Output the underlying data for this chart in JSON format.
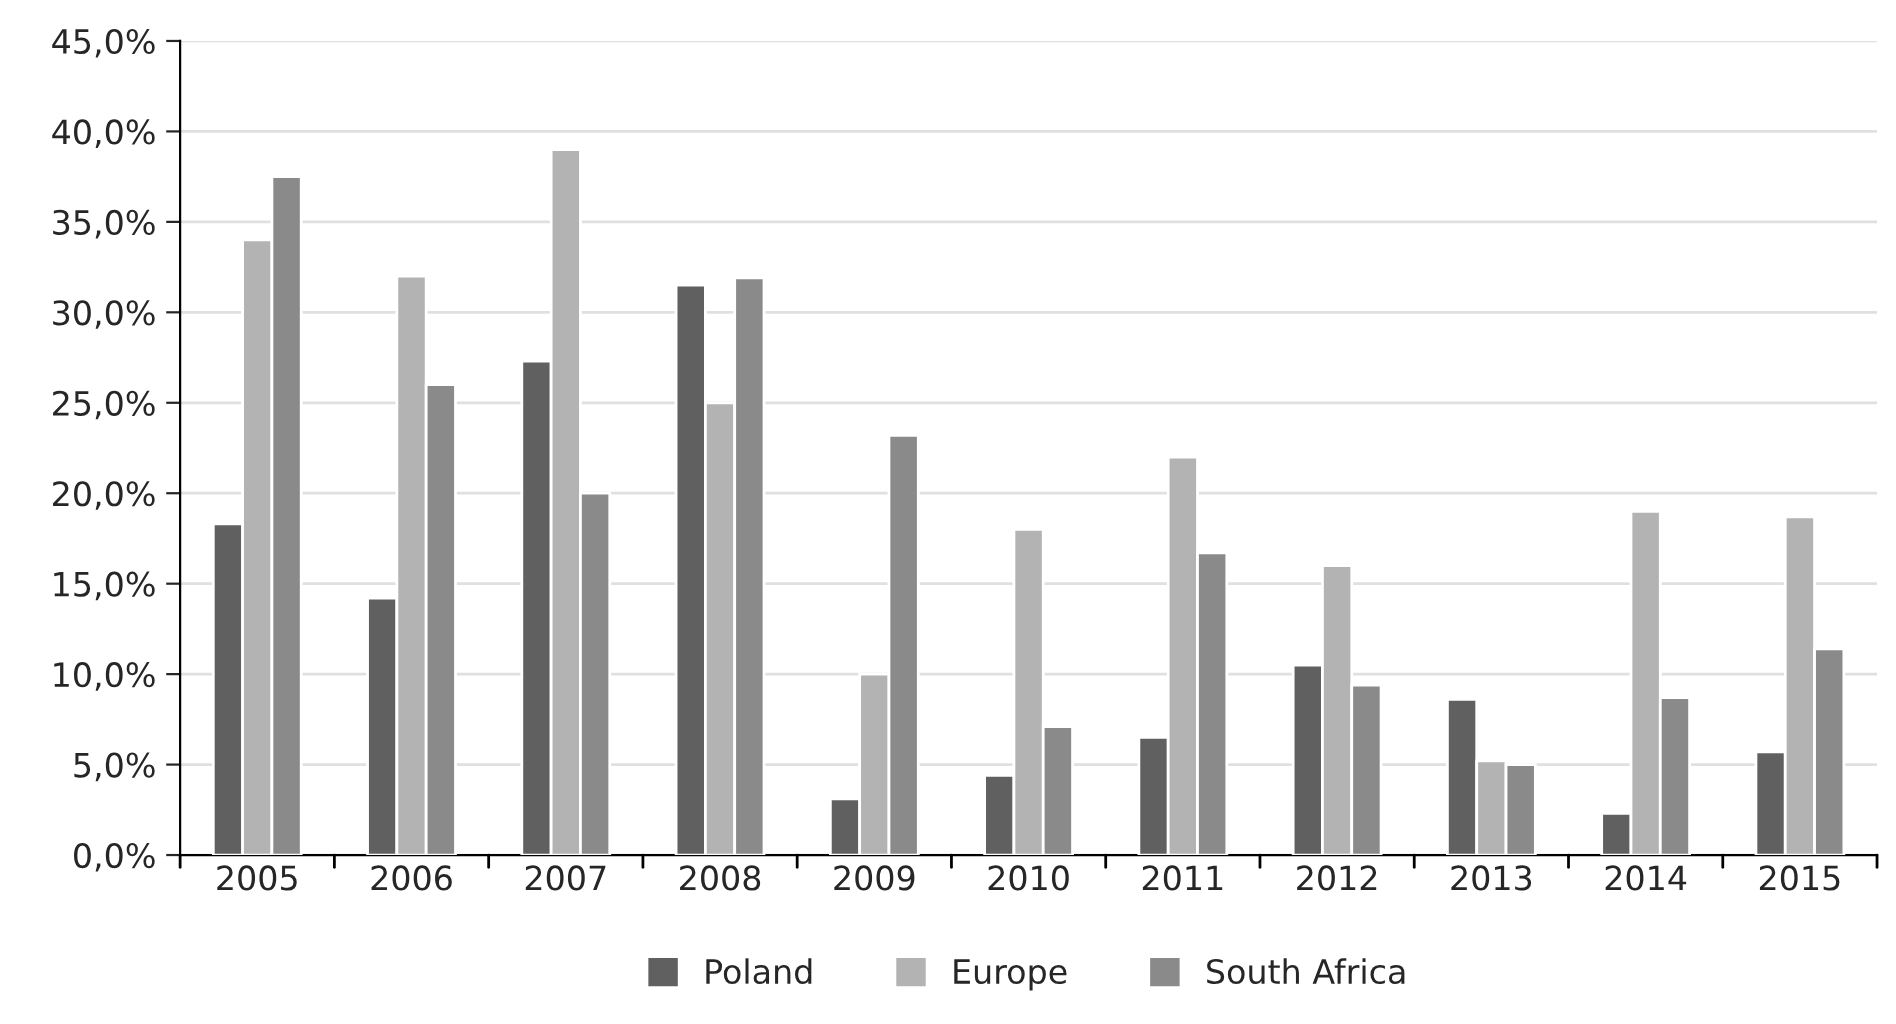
{
  "chart_data": {
    "type": "bar",
    "categories": [
      "2005",
      "2006",
      "2007",
      "2008",
      "2009",
      "2010",
      "2011",
      "2012",
      "2013",
      "2014",
      "2015"
    ],
    "series": [
      {
        "name": "Poland",
        "color": "#606060",
        "values": [
          18.3,
          14.2,
          27.3,
          31.5,
          3.1,
          4.4,
          6.5,
          10.5,
          8.6,
          2.3,
          5.7
        ]
      },
      {
        "name": "Europe",
        "color": "#b3b3b3",
        "values": [
          34.0,
          32.0,
          39.0,
          25.0,
          10.0,
          18.0,
          22.0,
          16.0,
          5.2,
          19.0,
          18.7
        ]
      },
      {
        "name": "South Africa",
        "color": "#8a8a8a",
        "values": [
          37.5,
          26.0,
          20.0,
          31.9,
          23.2,
          7.1,
          16.7,
          9.4,
          5.0,
          8.7,
          11.4
        ]
      }
    ],
    "ylim": [
      0,
      45
    ],
    "yticks": [
      {
        "value": 0,
        "label": "0,0%"
      },
      {
        "value": 5,
        "label": "5,0%"
      },
      {
        "value": 10,
        "label": "10,0%"
      },
      {
        "value": 15,
        "label": "15,0%"
      },
      {
        "value": 20,
        "label": "20,0%"
      },
      {
        "value": 25,
        "label": "25,0%"
      },
      {
        "value": 30,
        "label": "30,0%"
      },
      {
        "value": 35,
        "label": "35,0%"
      },
      {
        "value": 40,
        "label": "40,0%"
      },
      {
        "value": 45,
        "label": "45,0%"
      }
    ],
    "grid": "y",
    "legend": "bottom"
  }
}
